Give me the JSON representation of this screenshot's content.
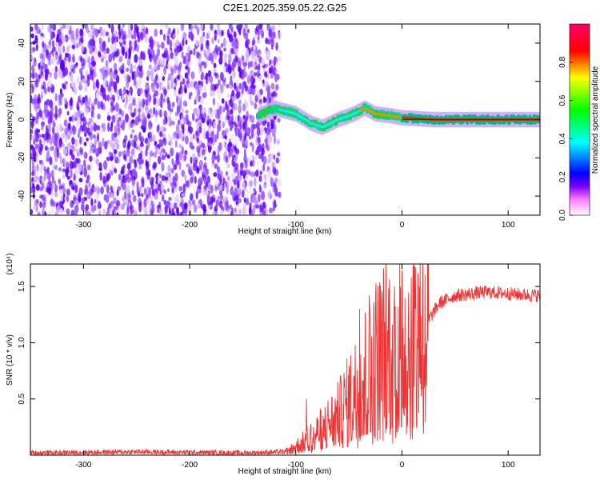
{
  "chart_data": [
    {
      "type": "heatmap",
      "title": "C2E1.2025.359.05.22.G25",
      "xlabel": "Height of straight line (km)",
      "ylabel": "Frequency (Hz)",
      "xlim": [
        -350,
        130
      ],
      "ylim": [
        -50,
        50
      ],
      "x_ticks": [
        "-300",
        "-200",
        "-100",
        "0",
        "100"
      ],
      "y_ticks": [
        "-40",
        "-20",
        "0",
        "20",
        "40"
      ],
      "colorbar": {
        "label": "Normalized spectral amplitude",
        "range": [
          0,
          1
        ],
        "ticks": [
          "0.0",
          "0.2",
          "0.4",
          "0.6",
          "0.8"
        ],
        "colors": [
          "#ffffff",
          "#ff00ff",
          "#0000ff",
          "#00ffff",
          "#00ff00",
          "#ffff00",
          "#ff0000",
          "#ff0066"
        ]
      },
      "description_values": {
        "noise_region_x": [
          -350,
          -115
        ],
        "signal_start_x": -135,
        "signal_track": [
          {
            "x": -135,
            "y": 2
          },
          {
            "x": -120,
            "y": 6
          },
          {
            "x": -100,
            "y": 3
          },
          {
            "x": -85,
            "y": -2
          },
          {
            "x": -75,
            "y": -4
          },
          {
            "x": -60,
            "y": 0
          },
          {
            "x": -45,
            "y": 3
          },
          {
            "x": -35,
            "y": 6
          },
          {
            "x": -25,
            "y": 3
          },
          {
            "x": -10,
            "y": 2
          },
          {
            "x": 0,
            "y": 1
          },
          {
            "x": 30,
            "y": 0
          },
          {
            "x": 60,
            "y": 0
          },
          {
            "x": 100,
            "y": 0
          },
          {
            "x": 130,
            "y": 0
          }
        ]
      }
    },
    {
      "type": "line",
      "xlabel": "Height of straight line (km)",
      "ylabel": "SNR (10 * v/v)",
      "yscale_label": "(x10⁴)",
      "xlim": [
        -350,
        130
      ],
      "ylim": [
        0,
        1.7
      ],
      "x_ticks": [
        "-300",
        "-200",
        "-100",
        "0",
        "100"
      ],
      "y_ticks": [
        "0.5",
        "1.0",
        "1.5"
      ],
      "series": [
        {
          "color": "#ee3333",
          "trend": [
            {
              "x": -350,
              "y": 0.02
            },
            {
              "x": -250,
              "y": 0.03
            },
            {
              "x": -150,
              "y": 0.02
            },
            {
              "x": -110,
              "y": 0.03
            },
            {
              "x": -95,
              "y": 0.1
            },
            {
              "x": -80,
              "y": 0.2
            },
            {
              "x": -60,
              "y": 0.35
            },
            {
              "x": -45,
              "y": 0.55
            },
            {
              "x": -30,
              "y": 0.8
            },
            {
              "x": -15,
              "y": 0.95
            },
            {
              "x": 0,
              "y": 1.0
            },
            {
              "x": 12,
              "y": 1.05
            },
            {
              "x": 25,
              "y": 1.2
            },
            {
              "x": 35,
              "y": 1.35
            },
            {
              "x": 50,
              "y": 1.42
            },
            {
              "x": 80,
              "y": 1.45
            },
            {
              "x": 110,
              "y": 1.43
            },
            {
              "x": 130,
              "y": 1.42
            }
          ],
          "spikes": [
            {
              "x": 12,
              "y": 1.68
            },
            {
              "x": 15,
              "y": 1.62
            },
            {
              "x": -20,
              "y": 1.35
            },
            {
              "x": -40,
              "y": 1.3
            },
            {
              "x": -30,
              "y": 1.2
            },
            {
              "x": -90,
              "y": 0.5
            }
          ]
        }
      ]
    }
  ]
}
